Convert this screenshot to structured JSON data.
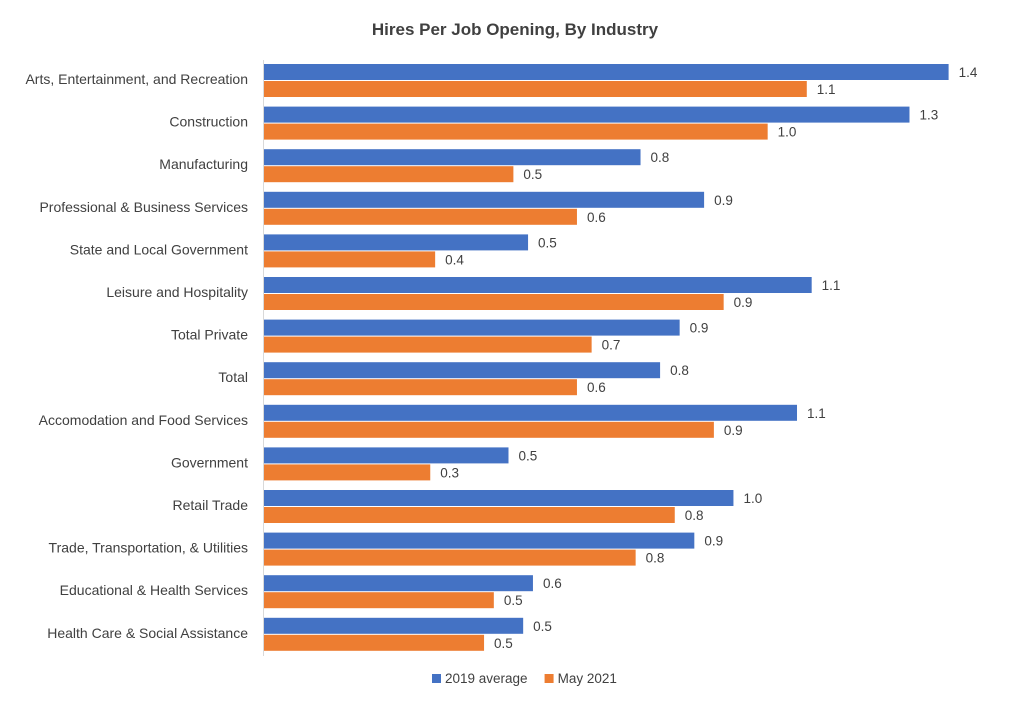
{
  "chart_data": {
    "type": "bar",
    "orientation": "horizontal",
    "title": "Hires Per Job Opening, By Industry",
    "xlabel": "",
    "ylabel": "",
    "xlim": [
      0,
      1.4
    ],
    "grid": false,
    "legend_position": "bottom",
    "categories": [
      "Arts, Entertainment, and Recreation",
      "Construction",
      "Manufacturing",
      "Professional & Business Services",
      "State and Local Government",
      "Leisure and Hospitality",
      "Total Private",
      "Total",
      "Accomodation and Food Services",
      "Government",
      "Retail Trade",
      "Trade, Transportation, & Utilities",
      "Educational & Health Services",
      "Health Care & Social Assistance"
    ],
    "series": [
      {
        "name": "2019 average",
        "color": "#4472c4",
        "values": [
          1.4,
          1.32,
          0.77,
          0.9,
          0.54,
          1.12,
          0.85,
          0.81,
          1.09,
          0.5,
          0.96,
          0.88,
          0.55,
          0.53
        ],
        "labels": [
          "1.4",
          "1.3",
          "0.8",
          "0.9",
          "0.5",
          "1.1",
          "0.9",
          "0.8",
          "1.1",
          "0.5",
          "1.0",
          "0.9",
          "0.6",
          "0.5"
        ]
      },
      {
        "name": "May 2021",
        "color": "#ed7d31",
        "values": [
          1.11,
          1.03,
          0.51,
          0.64,
          0.35,
          0.94,
          0.67,
          0.64,
          0.92,
          0.34,
          0.84,
          0.76,
          0.47,
          0.45
        ],
        "labels": [
          "1.1",
          "1.0",
          "0.5",
          "0.6",
          "0.4",
          "0.9",
          "0.7",
          "0.6",
          "0.9",
          "0.3",
          "0.8",
          "0.8",
          "0.5",
          "0.5"
        ]
      }
    ]
  }
}
